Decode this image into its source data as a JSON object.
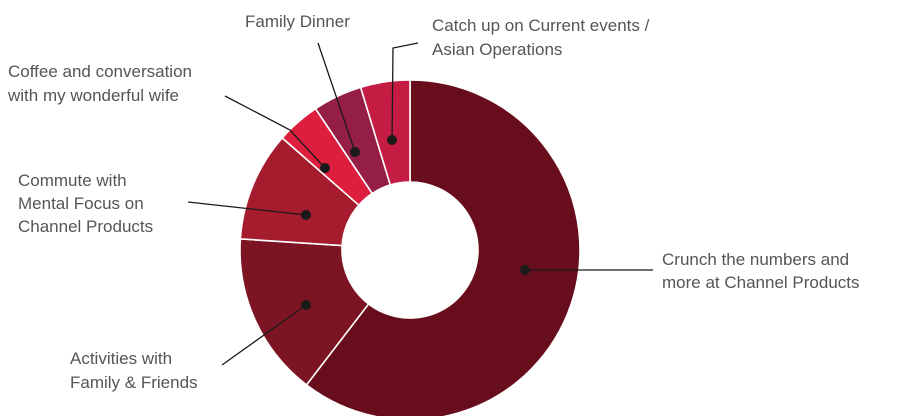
{
  "chart_data": {
    "type": "pie",
    "donut": true,
    "legend": "none",
    "start_angle_deg": 0,
    "direction": "clockwise",
    "slices": [
      {
        "label": "Crunch the numbers and more at Channel Products",
        "lines": [
          "Crunch the numbers and",
          "more at Channel Products"
        ],
        "value": 58,
        "color": "#680d1c"
      },
      {
        "label": "Activities with Family & Friends",
        "lines": [
          "Activities with",
          "Family & Friends"
        ],
        "value": 15,
        "color": "#7c1423"
      },
      {
        "label": "Commute with Mental Focus on Channel Products",
        "lines": [
          "Commute with",
          "Mental Focus on",
          "Channel Products"
        ],
        "value": 10,
        "color": "#a51c2e"
      },
      {
        "label": "Coffee and conversation with my wonderful wife",
        "lines": [
          "Coffee and conversation",
          "with my wonderful wife"
        ],
        "value": 4,
        "color": "#de1e3d"
      },
      {
        "label": "Family Dinner",
        "lines": [
          "Family Dinner"
        ],
        "value": 4.5,
        "color": "#941e45"
      },
      {
        "label": "Catch up on Current events / Asian Operations",
        "lines": [
          "Catch up on Current events /",
          "Asian Operations"
        ],
        "value": 4.5,
        "color": "#c51c44"
      }
    ]
  }
}
